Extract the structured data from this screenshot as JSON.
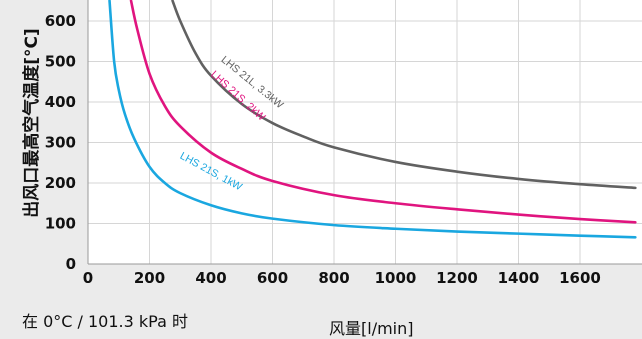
{
  "chart_data": {
    "type": "line",
    "xlabel": "风量[l/min]",
    "ylabel": "出风口最高空气温度[°C]",
    "note": "在 0°C / 101.3 kPa 时",
    "xlim": [
      0,
      1780
    ],
    "ylim": [
      0,
      650
    ],
    "x_ticks": [
      0,
      200,
      400,
      600,
      800,
      1000,
      1200,
      1400,
      1600
    ],
    "y_ticks": [
      0,
      100,
      200,
      300,
      400,
      500,
      600
    ],
    "grid": true,
    "series": [
      {
        "name": "LHS 21S, 1kW",
        "color": "#1aa7e0",
        "label_at": [
          150,
          640
        ],
        "x": [
          70,
          85,
          100,
          120,
          150,
          200,
          250,
          300,
          400,
          500,
          600,
          800,
          1000,
          1200,
          1400,
          1600,
          1780
        ],
        "y": [
          650,
          500,
          430,
          370,
          310,
          240,
          200,
          175,
          145,
          125,
          112,
          96,
          87,
          80,
          75,
          70,
          66
        ]
      },
      {
        "name": "LHS 21S, 2kW",
        "color": "#e0147f",
        "label_at": [
          147,
          815
        ],
        "x": [
          140,
          160,
          200,
          250,
          300,
          400,
          500,
          600,
          800,
          1000,
          1200,
          1400,
          1600,
          1780
        ],
        "y": [
          650,
          580,
          470,
          390,
          340,
          275,
          235,
          205,
          170,
          150,
          135,
          122,
          111,
          103
        ]
      },
      {
        "name": "LHS 21L, 3.3kW",
        "color": "#616161",
        "label_at": [
          330,
          725
        ],
        "x": [
          275,
          300,
          350,
          400,
          500,
          600,
          700,
          800,
          1000,
          1200,
          1400,
          1600,
          1780
        ],
        "y": [
          650,
          600,
          520,
          465,
          395,
          348,
          315,
          288,
          252,
          228,
          210,
          197,
          188
        ]
      }
    ]
  }
}
